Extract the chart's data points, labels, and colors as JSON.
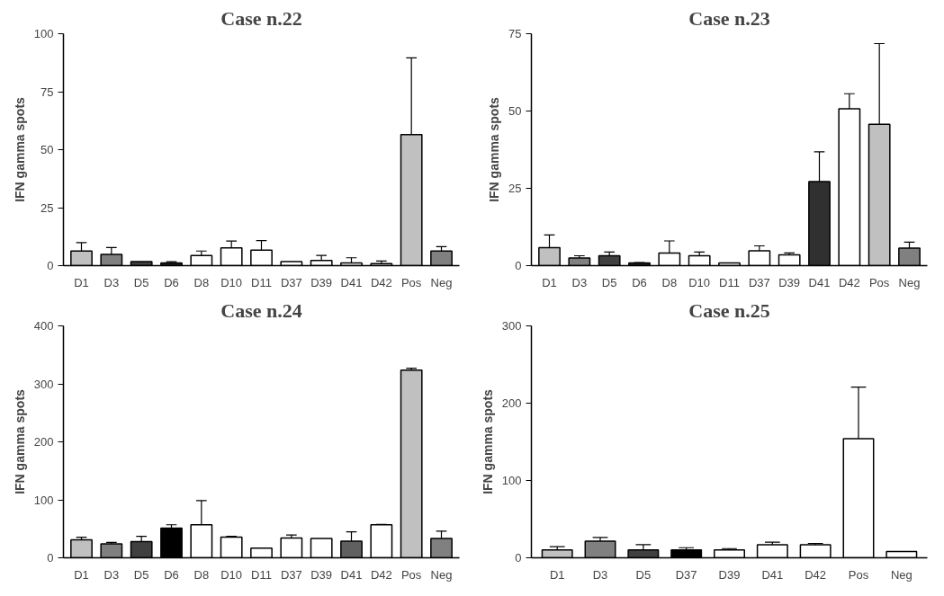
{
  "chart_data": [
    {
      "type": "bar",
      "title": "Case n.22",
      "ylabel": "IFN gamma spots",
      "categories": [
        "D1",
        "D3",
        "D5",
        "D6",
        "D8",
        "D10",
        "D11",
        "D37",
        "D39",
        "D41",
        "D42",
        "Pos",
        "Neg"
      ],
      "values": [
        6.3,
        4.8,
        1.7,
        1.2,
        4.4,
        7.7,
        6.7,
        1.7,
        2.2,
        1.2,
        0.9,
        56.5,
        6.3
      ],
      "errors": [
        [
          6.3,
          9.9
        ],
        [
          4.8,
          7.8
        ],
        null,
        [
          1.2,
          1.7
        ],
        [
          4.4,
          6.3
        ],
        [
          7.7,
          10.6
        ],
        [
          6.7,
          10.8
        ],
        null,
        [
          2.2,
          4.4
        ],
        [
          1.2,
          3.4
        ],
        [
          0.9,
          2.0
        ],
        [
          56.5,
          89.6
        ],
        [
          6.3,
          8.2
        ]
      ],
      "colors": [
        "#c0c0c0",
        "#808080",
        "#404040",
        "#202020",
        "#ffffff",
        "#ffffff",
        "#ffffff",
        "#ffffff",
        "#ffffff",
        "#ffffff",
        "#ffffff",
        "#c0c0c0",
        "#808080"
      ],
      "ylim": [
        0,
        100
      ],
      "yticks": [
        0,
        25,
        50,
        75,
        100
      ],
      "grid": false
    },
    {
      "type": "bar",
      "title": "Case n.23",
      "ylabel": "IFN gamma spots",
      "categories": [
        "D1",
        "D3",
        "D5",
        "D6",
        "D8",
        "D10",
        "D11",
        "D37",
        "D39",
        "D41",
        "D42",
        "Pos",
        "Neg"
      ],
      "values": [
        5.8,
        2.5,
        3.2,
        0.9,
        4.1,
        3.2,
        0.9,
        4.8,
        3.5,
        27.2,
        50.7,
        45.7,
        5.7
      ],
      "errors": [
        [
          5.8,
          9.9
        ],
        [
          2.5,
          3.2
        ],
        [
          3.2,
          4.4
        ],
        [
          0.9,
          1.0
        ],
        [
          4.1,
          8.0
        ],
        [
          3.2,
          4.4
        ],
        null,
        [
          4.8,
          6.4
        ],
        [
          3.5,
          4.1
        ],
        [
          27.2,
          36.8
        ],
        [
          50.7,
          55.6
        ],
        [
          45.7,
          71.8
        ],
        [
          5.7,
          7.6
        ]
      ],
      "colors": [
        "#c0c0c0",
        "#808080",
        "#404040",
        "#202020",
        "#ffffff",
        "#ffffff",
        "#ffffff",
        "#ffffff",
        "#ffffff",
        "#303030",
        "#ffffff",
        "#c0c0c0",
        "#808080"
      ],
      "ylim": [
        0,
        75
      ],
      "yticks": [
        0,
        25,
        50,
        75
      ],
      "grid": false
    },
    {
      "type": "bar",
      "title": "Case n.24",
      "ylabel": "IFN gamma spots",
      "categories": [
        "D1",
        "D3",
        "D5",
        "D6",
        "D8",
        "D10",
        "D11",
        "D37",
        "D39",
        "D41",
        "D42",
        "Pos",
        "Neg"
      ],
      "values": [
        31,
        24,
        28,
        51,
        57,
        35.6,
        16.7,
        34,
        33.3,
        28.8,
        56.8,
        323.5,
        33.3
      ],
      "errors": [
        [
          31,
          35.6
        ],
        [
          24,
          26.5
        ],
        [
          28,
          37
        ],
        [
          51,
          57
        ],
        [
          57,
          98.5
        ],
        [
          35.6,
          37
        ],
        null,
        [
          34,
          39.4
        ],
        null,
        [
          28.8,
          44.7
        ],
        [
          56.8,
          57.6
        ],
        [
          323.5,
          327
        ],
        [
          33.3,
          46
        ]
      ],
      "colors": [
        "#c0c0c0",
        "#808080",
        "#404040",
        "#000000",
        "#ffffff",
        "#ffffff",
        "#ffffff",
        "#ffffff",
        "#ffffff",
        "#606060",
        "#ffffff",
        "#c0c0c0",
        "#808080"
      ],
      "ylim": [
        0,
        400
      ],
      "yticks": [
        0,
        100,
        200,
        300,
        400
      ],
      "grid": false
    },
    {
      "type": "bar",
      "title": "Case n.25",
      "ylabel": "IFN gamma spots",
      "categories": [
        "D1",
        "D3",
        "D5",
        "D37",
        "D39",
        "D41",
        "D42",
        "Pos",
        "Neg"
      ],
      "values": [
        10.2,
        21.6,
        10.2,
        10.2,
        10.2,
        17,
        17,
        154.2,
        8.1
      ],
      "errors": [
        [
          10.2,
          14.4
        ],
        [
          21.6,
          26.3
        ],
        [
          10.2,
          17
        ],
        [
          10.2,
          13.1
        ],
        [
          10.2,
          11.9
        ],
        [
          17,
          20.3
        ],
        [
          17,
          18.6
        ],
        [
          154.2,
          220.8
        ],
        null
      ],
      "colors": [
        "#c0c0c0",
        "#808080",
        "#404040",
        "#000000",
        "#ffffff",
        "#ffffff",
        "#ffffff",
        "#ffffff",
        "#ffffff"
      ],
      "ylim": [
        0,
        300
      ],
      "yticks": [
        0,
        100,
        200,
        300
      ],
      "grid": false
    }
  ]
}
